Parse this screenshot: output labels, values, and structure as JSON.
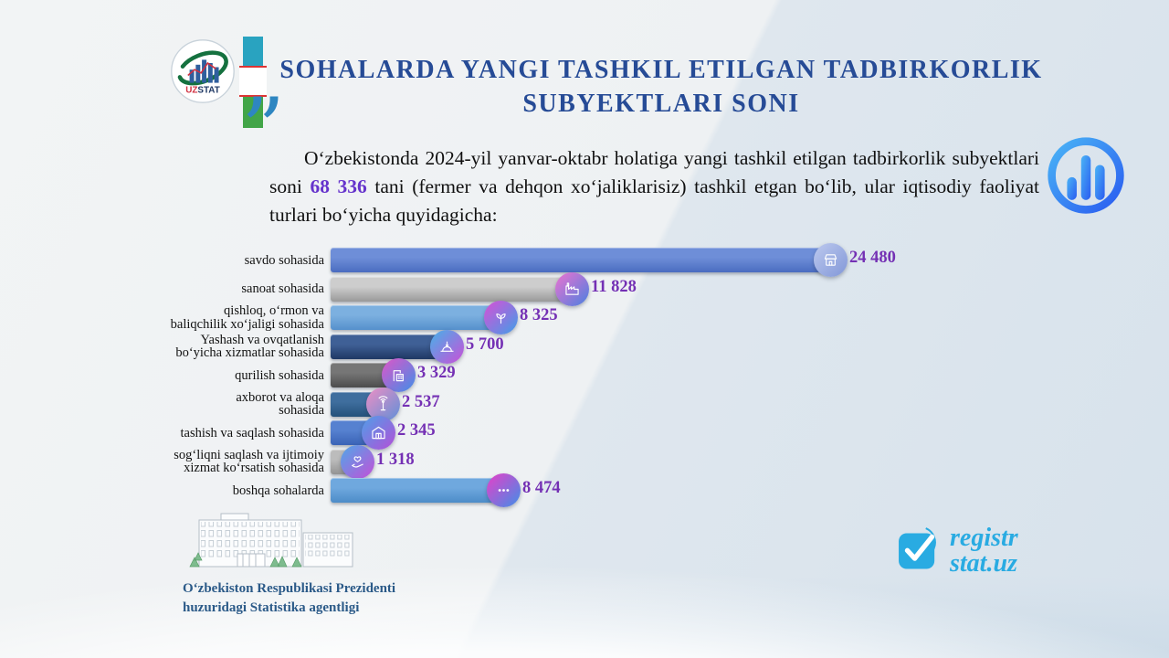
{
  "colors": {
    "title_blue": "#264b96",
    "quote_blue": "#2e86c1",
    "highlight_violet": "#6633cc",
    "value_purple": "#7430b4",
    "agency_blue": "#2b5a88",
    "brand_cyan": "#29abe2",
    "flag_cyan": "#29a3c0",
    "flag_red": "#dd3333",
    "flag_green": "#42a548"
  },
  "header": {
    "logo_uz": "UZ",
    "logo_stat": "STAT",
    "title_line1": "SOHALARDA YANGI TASHKIL ETILGAN TADBIRKORLIK",
    "title_line2": "SUBYEKTLARI SONI"
  },
  "intro": {
    "quote_mark": "”",
    "text_before": "Oʻzbekistonda 2024-yil yanvar-oktabr holatiga yangi tashkil etilgan tadbirkorlik subyektlari soni ",
    "highlight": "68 336",
    "text_after": " tani (fermer va dehqon xoʻjaliklarisiz) tashkil etgan boʻlib, ular iqtisodiy faoliyat turlari boʻyicha quyidagicha:"
  },
  "chart_data": {
    "type": "bar",
    "orientation": "horizontal",
    "xlim": [
      0,
      24480
    ],
    "grid": false,
    "legend": "none",
    "categories": [
      "savdo sohasida",
      "sanoat sohasida",
      "qishloq, oʻrmon va baliqchilik xoʻjaligi sohasida",
      "Yashash va ovqatlanish boʻyicha xizmatlar sohasida",
      "qurilish sohasida",
      "axborot va aloqa sohasida",
      "tashish va saqlash sohasida",
      "sogʻliqni saqlash va ijtimoiy xizmat koʻrsatish sohasida",
      "boshqa sohalarda"
    ],
    "values": [
      24480,
      11828,
      8325,
      5700,
      3329,
      2537,
      2345,
      1318,
      8474
    ],
    "rows": [
      {
        "label_lines": [
          "savdo sohasida"
        ],
        "value": 24480,
        "value_label": "24 480",
        "bar_from": "#6e8ed8",
        "bar_to": "#4a6cc0",
        "icon": "storefront-icon",
        "icon_from": "#bdc9ee",
        "icon_to": "#8197d8"
      },
      {
        "label_lines": [
          "sanoat sohasida"
        ],
        "value": 11828,
        "value_label": "11 828",
        "bar_from": "#cdcdcd",
        "bar_to": "#999999",
        "icon": "factory-icon",
        "icon_from": "#ee72d0",
        "icon_to": "#4a80e0"
      },
      {
        "label_lines": [
          "qishloq, oʻrmon va",
          "baliqchilik xoʻjaligi sohasida"
        ],
        "value": 8325,
        "value_label": "8 325",
        "bar_from": "#7cb0e0",
        "bar_to": "#5590cc",
        "icon": "agriculture-icon",
        "icon_from": "#da4fd6",
        "icon_to": "#3f9fe8"
      },
      {
        "label_lines": [
          "Yashash va ovqatlanish",
          "boʻyicha xizmatlar sohasida"
        ],
        "value": 5700,
        "value_label": "5 700",
        "bar_from": "#3f6096",
        "bar_to": "#1f3864",
        "icon": "food-service-icon",
        "icon_from": "#45b2e8",
        "icon_to": "#cc4fd8"
      },
      {
        "label_lines": [
          "qurilish sohasida"
        ],
        "value": 3329,
        "value_label": "3 329",
        "bar_from": "#767676",
        "bar_to": "#4c4c4c",
        "icon": "construction-icon",
        "icon_from": "#e055c8",
        "icon_to": "#3f8fe8"
      },
      {
        "label_lines": [
          "axborot va aloqa",
          "sohasida"
        ],
        "value": 2537,
        "value_label": "2 537",
        "bar_from": "#3f6e9e",
        "bar_to": "#24517a",
        "icon": "communication-icon",
        "icon_from": "#ee8fc4",
        "icon_to": "#5f8fd8"
      },
      {
        "label_lines": [
          "tashish va saqlash sohasida"
        ],
        "value": 2345,
        "value_label": "2 345",
        "bar_from": "#5681d0",
        "bar_to": "#3a63b6",
        "icon": "transport-icon",
        "icon_from": "#4f9fe8",
        "icon_to": "#b44fd8"
      },
      {
        "label_lines": [
          "sogʻliqni saqlash va ijtimoiy",
          "xizmat koʻrsatish sohasida"
        ],
        "value": 1318,
        "value_label": "1 318",
        "bar_from": "#bcbcbc",
        "bar_to": "#939393",
        "icon": "healthcare-icon",
        "icon_from": "#4fa8e8",
        "icon_to": "#c44fd8"
      },
      {
        "label_lines": [
          "boshqa sohalarda"
        ],
        "value": 8474,
        "value_label": "8 474",
        "bar_from": "#6fa8de",
        "bar_to": "#4c8cc8",
        "icon": "ellipsis-icon",
        "icon_from": "#e83fc8",
        "icon_to": "#3f8fe8"
      }
    ]
  },
  "footer": {
    "agency_line1": "Oʻzbekiston Respublikasi Prezidenti",
    "agency_line2": "huzuridagi Statistika agentligi",
    "brand_line1": "registr",
    "brand_line2": "stat.uz"
  }
}
